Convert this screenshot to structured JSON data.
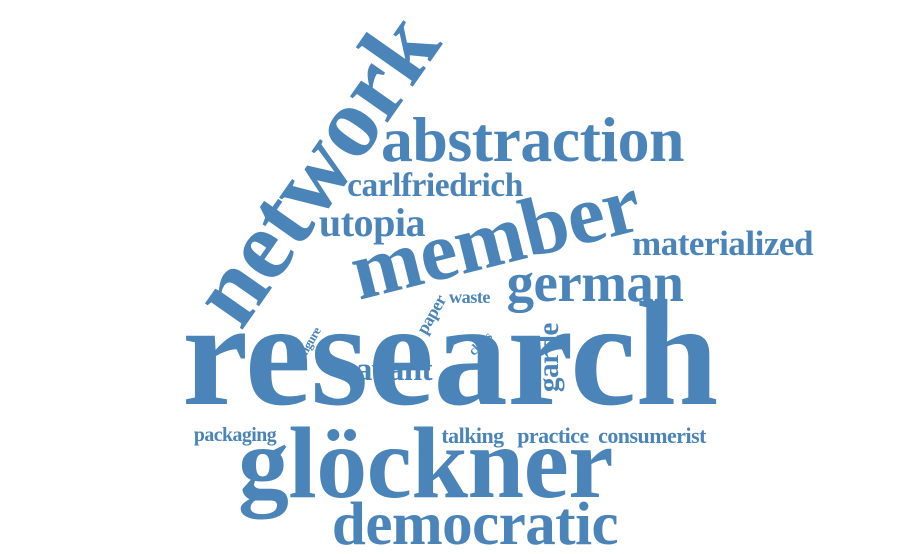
{
  "colors": {
    "background": "#ffffff",
    "word": "#4a84b8"
  },
  "words": [
    {
      "key": "research",
      "text": "research"
    },
    {
      "key": "member",
      "text": "member"
    },
    {
      "key": "network",
      "text": "network"
    },
    {
      "key": "abstraction",
      "text": "abstraction"
    },
    {
      "key": "glockner",
      "text": "glöckner"
    },
    {
      "key": "democratic",
      "text": "democratic"
    },
    {
      "key": "german",
      "text": "german"
    },
    {
      "key": "carlfriedrich",
      "text": "carlfriedrich"
    },
    {
      "key": "utopia",
      "text": "utopia"
    },
    {
      "key": "materialized",
      "text": "materialized"
    },
    {
      "key": "avant",
      "text": "avant"
    },
    {
      "key": "garde",
      "text": "garde"
    },
    {
      "key": "paper",
      "text": "paper"
    },
    {
      "key": "waste",
      "text": "waste"
    },
    {
      "key": "claus",
      "text": "claus"
    },
    {
      "key": "figure",
      "text": "figure"
    },
    {
      "key": "packaging",
      "text": "packaging"
    },
    {
      "key": "talking",
      "text": "talking"
    },
    {
      "key": "practice",
      "text": "practice"
    },
    {
      "key": "consumerist",
      "text": "consumerist"
    }
  ]
}
